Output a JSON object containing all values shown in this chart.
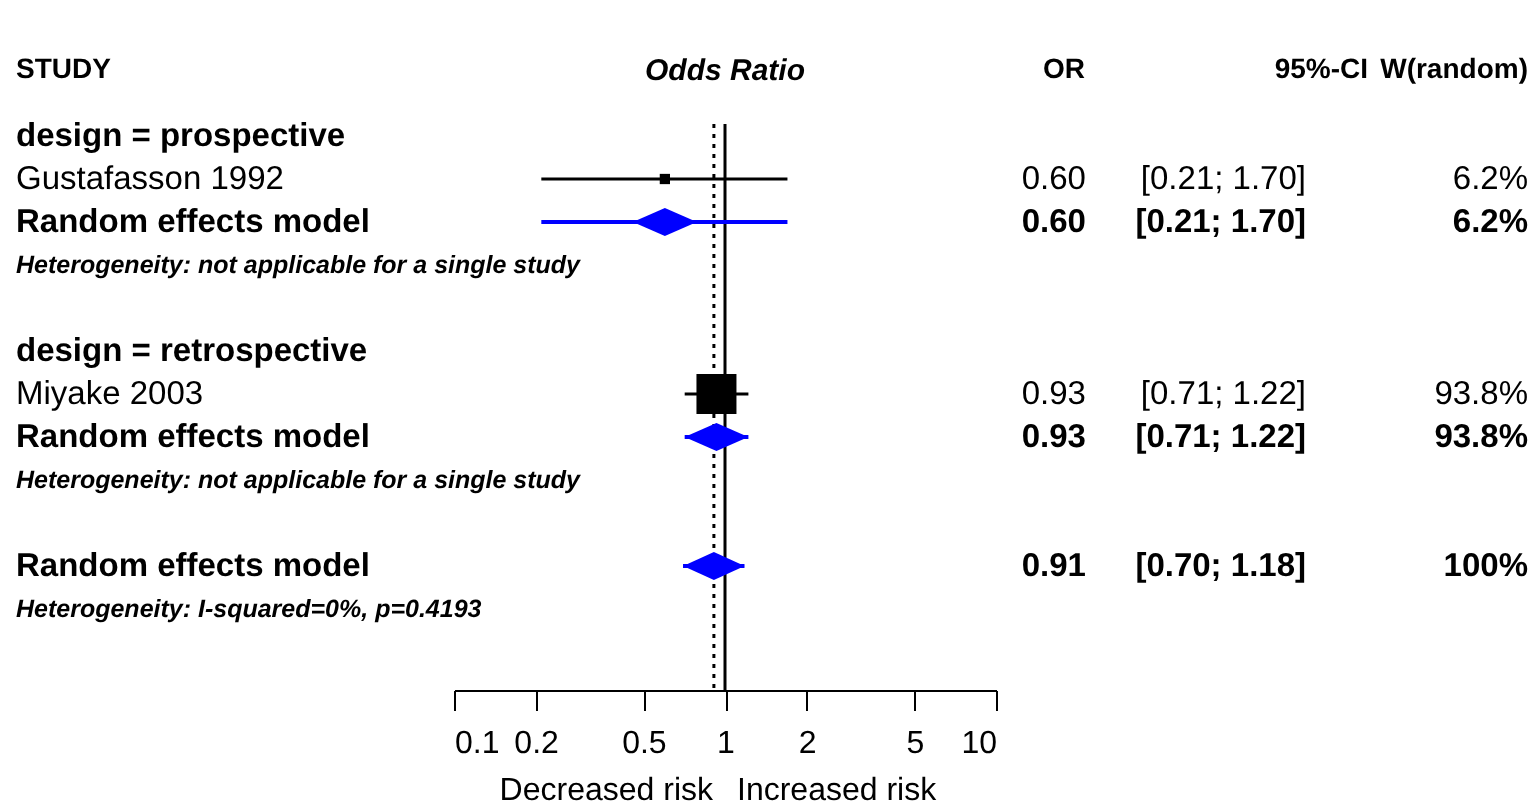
{
  "chart_data": {
    "type": "scatter",
    "orientation": "horizontal",
    "title": "Odds Ratio",
    "ylabel": "STUDY",
    "log": "x",
    "categories": [
      "design = prospective",
      "Gustafasson 1992",
      "Random effects model",
      "Heterogeneity: not applicable for a single study",
      null,
      "design = retrospective",
      "Miyake 2003",
      "Random effects model",
      "Heterogeneity: not applicable for a single study",
      null,
      "Random effects model",
      "Heterogeneity: I-squared=0%, p=0.4193"
    ],
    "series": [
      {
        "type": "bubble",
        "marker": "square",
        "color": "#000000",
        "values": [
          null,
          0.6,
          null,
          null,
          null,
          null,
          0.93,
          null,
          null,
          null,
          null,
          null
        ],
        "errors": [
          null,
          [
            0.21,
            1.7
          ],
          null,
          null,
          null,
          null,
          [
            0.71,
            1.22
          ],
          null,
          null,
          null,
          null,
          null
        ],
        "sizes": [
          null,
          0.066,
          null,
          null,
          null,
          null,
          1,
          null,
          null,
          null,
          null,
          null
        ]
      },
      {
        "type": "scatter",
        "marker": "diamond",
        "color": "#0000ff",
        "values": [
          null,
          null,
          0.6,
          null,
          null,
          null,
          null,
          0.93,
          null,
          null,
          0.91,
          null
        ],
        "errors": [
          null,
          null,
          [
            0.21,
            1.7
          ],
          null,
          null,
          null,
          null,
          [
            0.71,
            1.22
          ],
          null,
          null,
          [
            0.7,
            1.18
          ],
          null
        ]
      }
    ],
    "xlim": [
      0.1,
      10
    ],
    "xticks": [
      0.1,
      0.2,
      0.5,
      1,
      2,
      5,
      10
    ],
    "ref_lines": [
      {
        "axis": "x",
        "value": 1,
        "line_style": "solid",
        "color": "#000000"
      },
      {
        "axis": "x",
        "value": 0.91,
        "line_style": "dotted",
        "color": "#000000"
      }
    ],
    "annotations": [
      "OR",
      "95%-CI",
      "W(random)",
      "Decreased risk",
      "Increased risk",
      "0.60",
      "[0.21; 1.70]",
      "6.2%",
      "0.60",
      "[0.21; 1.70]",
      "6.2%",
      "0.93",
      "[0.71; 1.22]",
      "93.8%",
      "0.93",
      "[0.71; 1.22]",
      "93.8%",
      "0.91",
      "[0.70; 1.18]",
      "100%"
    ]
  }
}
